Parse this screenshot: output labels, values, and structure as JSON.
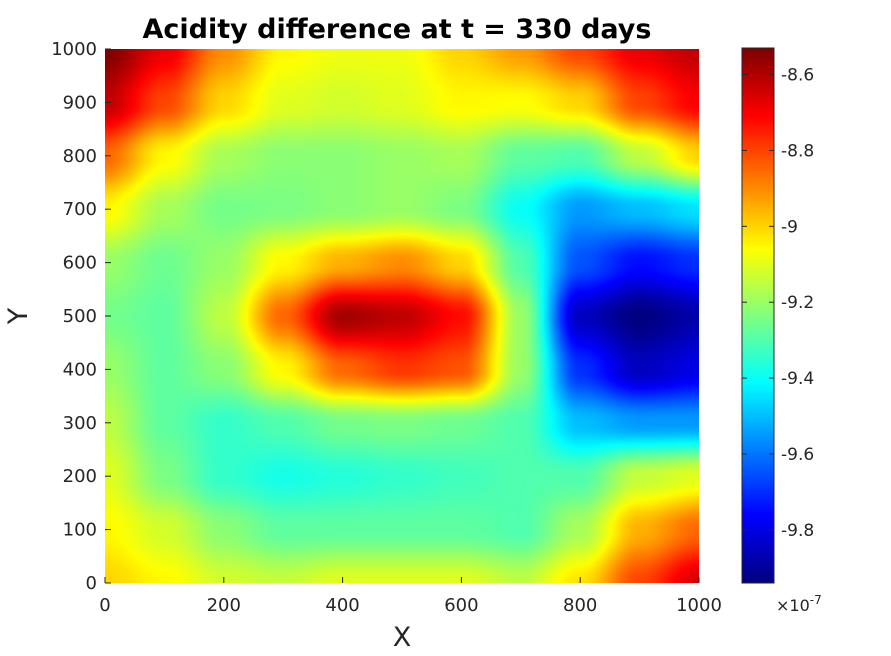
{
  "chart_data": {
    "type": "heatmap",
    "title": "Acidity difference at t = 330 days",
    "xlabel": "X",
    "ylabel": "Y",
    "xlim": [
      0,
      1000
    ],
    "ylim": [
      0,
      1000
    ],
    "xticks": [
      0,
      200,
      400,
      600,
      800,
      1000
    ],
    "yticks": [
      0,
      100,
      200,
      300,
      400,
      500,
      600,
      700,
      800,
      900,
      1000
    ],
    "xtick_labels": [
      "0",
      "200",
      "400",
      "600",
      "800",
      "1000"
    ],
    "ytick_labels": [
      "0",
      "100",
      "200",
      "300",
      "400",
      "500",
      "600",
      "700",
      "800",
      "900",
      "1000"
    ],
    "colormap": "jet",
    "colorbar": {
      "clim": [
        -9.94,
        -8.53
      ],
      "ticks": [
        -9.8,
        -9.6,
        -9.4,
        -9.2,
        -9.0,
        -8.8,
        -8.6
      ],
      "tick_labels": [
        "-9.8",
        "-9.6",
        "-9.4",
        "-9.2",
        "-9",
        "-8.8",
        "-8.6"
      ],
      "multiplier_base": "×10",
      "multiplier_exponent": "-7"
    },
    "grid_x": [
      0,
      100,
      200,
      300,
      400,
      500,
      600,
      700,
      800,
      900,
      1000
    ],
    "grid_y": [
      0,
      100,
      200,
      300,
      400,
      500,
      600,
      700,
      800,
      900,
      1000
    ],
    "values": [
      [
        -9.0,
        -9.05,
        -9.12,
        -9.14,
        -9.1,
        -9.1,
        -9.1,
        -9.15,
        -9.02,
        -8.8,
        -8.65
      ],
      [
        -9.05,
        -9.12,
        -9.22,
        -9.28,
        -9.28,
        -9.28,
        -9.28,
        -9.3,
        -9.18,
        -8.95,
        -8.85
      ],
      [
        -9.1,
        -9.24,
        -9.34,
        -9.38,
        -9.36,
        -9.34,
        -9.32,
        -9.3,
        -9.3,
        -9.14,
        -9.1
      ],
      [
        -9.15,
        -9.28,
        -9.34,
        -9.3,
        -9.25,
        -9.24,
        -9.26,
        -9.3,
        -9.5,
        -9.55,
        -9.55
      ],
      [
        -9.2,
        -9.28,
        -9.22,
        -9.05,
        -8.85,
        -8.78,
        -8.82,
        -9.2,
        -9.7,
        -9.85,
        -9.8
      ],
      [
        -9.25,
        -9.28,
        -9.15,
        -8.85,
        -8.58,
        -8.62,
        -8.72,
        -9.2,
        -9.85,
        -9.94,
        -9.88
      ],
      [
        -9.2,
        -9.26,
        -9.2,
        -9.05,
        -8.95,
        -8.9,
        -9.0,
        -9.3,
        -9.65,
        -9.75,
        -9.7
      ],
      [
        -9.05,
        -9.18,
        -9.25,
        -9.24,
        -9.22,
        -9.2,
        -9.24,
        -9.4,
        -9.55,
        -9.5,
        -9.45
      ],
      [
        -8.85,
        -9.05,
        -9.18,
        -9.22,
        -9.22,
        -9.2,
        -9.18,
        -9.28,
        -9.3,
        -9.15,
        -9.0
      ],
      [
        -8.62,
        -8.8,
        -9.0,
        -9.1,
        -9.12,
        -9.1,
        -9.05,
        -9.06,
        -9.0,
        -8.8,
        -8.7
      ],
      [
        -8.53,
        -8.68,
        -8.9,
        -9.05,
        -9.08,
        -9.08,
        -9.0,
        -8.92,
        -8.8,
        -8.68,
        -8.62
      ]
    ]
  }
}
